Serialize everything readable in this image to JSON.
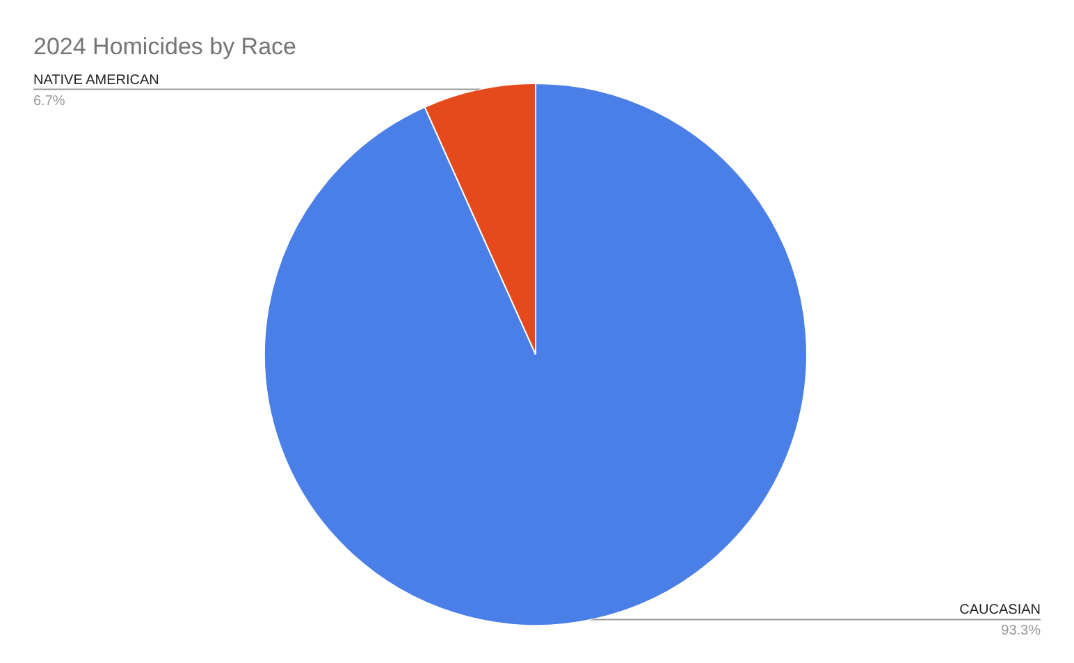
{
  "chart_data": {
    "type": "pie",
    "title": "2024 Homicides by Race",
    "categories": [
      "CAUCASIAN",
      "NATIVE AMERICAN"
    ],
    "values": [
      93.3,
      6.7
    ],
    "colors": [
      "#4a7fe8",
      "#e64a1c"
    ],
    "value_labels": [
      "93.3%",
      "6.7%"
    ],
    "legend": false
  }
}
